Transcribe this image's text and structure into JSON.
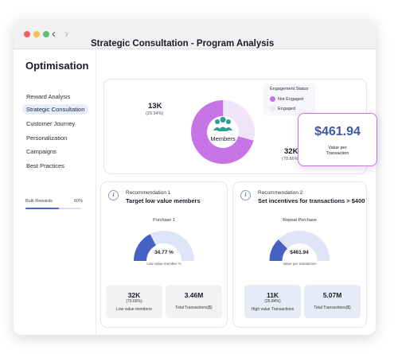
{
  "sidebar": {
    "title": "Optimisation",
    "items": [
      {
        "label": "Reward Analysis",
        "active": false
      },
      {
        "label": "Strategic Consultation",
        "active": true
      },
      {
        "label": "Customer Journey",
        "active": false
      },
      {
        "label": "Personalization",
        "active": false
      },
      {
        "label": "Campaigns",
        "active": false
      },
      {
        "label": "Best Practices",
        "active": false
      }
    ],
    "bulk": {
      "label": "Bulk Rewards",
      "percent_label": "60%",
      "progress": 0.6
    }
  },
  "main": {
    "title": "Strategic Consultation - Program Analysis"
  },
  "colors": {
    "not_engaged": "#f0e4fa",
    "engaged": "#c774e6",
    "gauge_filled": "#4561c4",
    "gauge_empty": "#dfe5f7",
    "members_icon": "#2f9e96",
    "value_accent": "#3d56ad"
  },
  "engagement": {
    "legend_title": "Engagement Status",
    "center_label": "Members",
    "center_icon": "members-icon",
    "not_engaged": {
      "legend": "Not Engaged",
      "value": "13K",
      "percent": "(29.34%)",
      "fraction": 0.2934
    },
    "engaged": {
      "legend": "Engaged",
      "value": "32K",
      "percent": "(70.66%)",
      "fraction": 0.7066
    }
  },
  "value_card": {
    "value": "$461.94",
    "label_line1": "Value per",
    "label_line2": "Transaction"
  },
  "recommendations": [
    {
      "number": "Recommendation 1",
      "title": "Target low value members",
      "gauge": {
        "title": "Purchase 1",
        "value": "34.77 %",
        "caption": "Low value member %",
        "fraction": 0.3477
      },
      "stats": [
        {
          "value": "32K",
          "label": "(70.66%)",
          "label2": "Low value members"
        },
        {
          "value": "3.46M",
          "label": "Total Transactions($)"
        }
      ]
    },
    {
      "number": "Recommendation 2",
      "title": "Set incentives for transactions > $400",
      "gauge": {
        "title": "Repeat Purchase",
        "value": "$461.94",
        "caption": "Value per transaction",
        "fraction": 0.25
      },
      "stats": [
        {
          "value": "11K",
          "label": "(26.84%)",
          "label2": "High value Transactions"
        },
        {
          "value": "5.07M",
          "label": "Total Transactions($)"
        }
      ]
    }
  ]
}
